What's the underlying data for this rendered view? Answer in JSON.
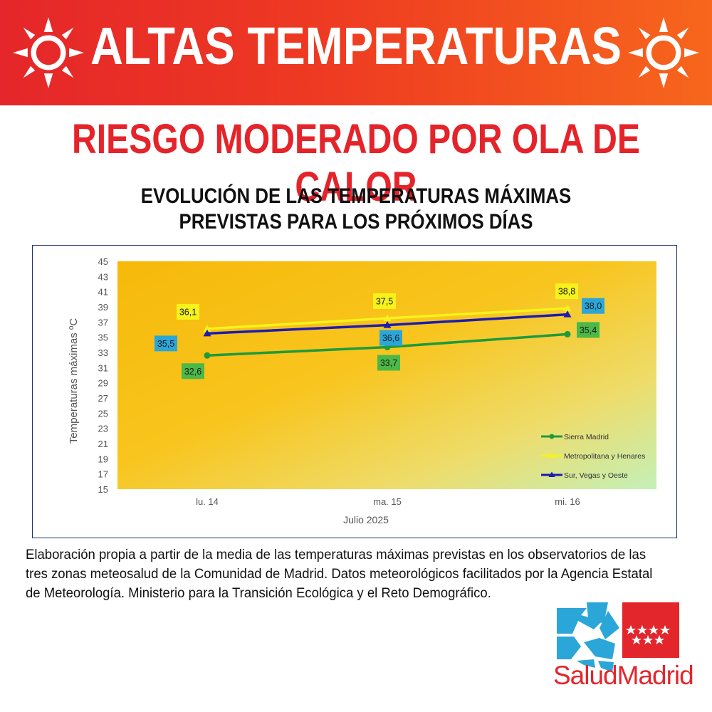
{
  "header": {
    "title": "ALTAS TEMPERATURAS",
    "subtitle": "RIESGO MODERADO POR OLA DE CALOR",
    "left_icon": "sun-icon",
    "right_icon": "sun-icon"
  },
  "chart_heading": {
    "line1": "EVOLUCIÓN DE LAS TEMPERATURAS MÁXIMAS",
    "line2": "PREVISTAS PARA LOS PRÓXIMOS DÍAS"
  },
  "chart_data": {
    "type": "line",
    "xlabel": "Julio 2025",
    "ylabel": "Temperaturas máximas ºC",
    "categories": [
      "lu. 14",
      "ma. 15",
      "mi. 16"
    ],
    "ylim": [
      15,
      45
    ],
    "yticks": [
      15,
      17,
      19,
      21,
      23,
      25,
      27,
      29,
      31,
      33,
      35,
      37,
      39,
      41,
      43,
      45
    ],
    "grid": false,
    "legend_position": "bottom-right",
    "series": [
      {
        "name": "Sierra Madrid",
        "values": [
          32.6,
          33.7,
          35.4
        ],
        "labels": [
          "32,6",
          "33,7",
          "35,4"
        ],
        "color": "#1e9a3c",
        "label_bg": "#4cb848",
        "label_color": "#1a1a1a",
        "marker": "circle"
      },
      {
        "name": "Metropolitana y Henares",
        "values": [
          36.1,
          37.5,
          38.8
        ],
        "labels": [
          "36,1",
          "37,5",
          "38,8"
        ],
        "color": "#f5f21c",
        "label_bg": "#f5f21c",
        "label_color": "#1a1a1a",
        "marker": "triangle"
      },
      {
        "name": "Sur, Vegas y Oeste",
        "values": [
          35.5,
          36.6,
          38.0
        ],
        "labels": [
          "35,5",
          "36,6",
          "38,0"
        ],
        "color": "#1c1cb0",
        "label_bg": "#2aa6d9",
        "label_color": "#1a1a1a",
        "marker": "triangle"
      }
    ]
  },
  "footnote": "Elaboración propia a partir de la media de las temperaturas máximas previstas en los observatorios de las tres zonas meteosalud de la Comunidad de Madrid. Datos meteorológicos facilitados por la Agencia Estatal de Meteorología. Ministerio para la Transición Ecológica y el Reto Demográfico.",
  "logo": {
    "text": "SaludMadrid",
    "icon": "salud-madrid-logo-icon",
    "colors": {
      "blue": "#2aa6d9",
      "red": "#e3262b"
    }
  }
}
